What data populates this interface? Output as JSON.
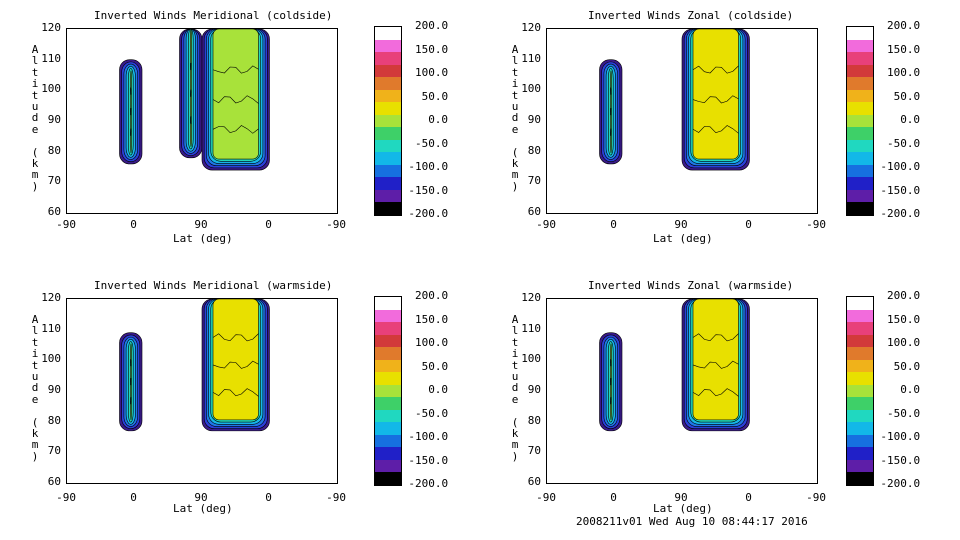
{
  "colorscale": {
    "stops": [
      "#ffffff",
      "#f26bdc",
      "#e8407a",
      "#d23a3a",
      "#e07a2c",
      "#f0b21a",
      "#e8e000",
      "#a8e23a",
      "#3ed068",
      "#20d8c0",
      "#12b8e8",
      "#1670e0",
      "#2020c8",
      "#5e1ea8",
      "#000000"
    ],
    "tick_labels": [
      "200.0",
      "150.0",
      "100.0",
      "50.0",
      "0.0",
      "-50.0",
      "-100.0",
      "-150.0",
      "-200.0"
    ]
  },
  "panels": [
    {
      "title": "Inverted Winds Meridional (coldside)",
      "xlabel": "Lat (deg)",
      "ylabel": "Altitude (km)",
      "xticks": [
        "-90",
        "0",
        "90",
        "0",
        "-90"
      ],
      "yticks": [
        "120",
        "110",
        "100",
        "90",
        "80",
        "70",
        "60"
      ]
    },
    {
      "title": "Inverted Winds Zonal (coldside)",
      "xlabel": "Lat (deg)",
      "ylabel": "Altitude (km)",
      "xticks": [
        "-90",
        "0",
        "90",
        "0",
        "-90"
      ],
      "yticks": [
        "120",
        "110",
        "100",
        "90",
        "80",
        "70",
        "60"
      ]
    },
    {
      "title": "Inverted Winds Meridional (warmside)",
      "xlabel": "Lat (deg)",
      "ylabel": "Altitude (km)",
      "xticks": [
        "-90",
        "0",
        "90",
        "0",
        "-90"
      ],
      "yticks": [
        "120",
        "110",
        "100",
        "90",
        "80",
        "70",
        "60"
      ]
    },
    {
      "title": "Inverted Winds Zonal (warmside)",
      "xlabel": "Lat (deg)",
      "ylabel": "Altitude (km)",
      "xticks": [
        "-90",
        "0",
        "90",
        "0",
        "-90"
      ],
      "yticks": [
        "120",
        "110",
        "100",
        "90",
        "80",
        "70",
        "60"
      ]
    }
  ],
  "footer": "2008211v01 Wed Aug 10 08:44:17 2016",
  "chart_data": [
    {
      "type": "heatmap",
      "title": "Inverted Winds Meridional (coldside)",
      "xlabel": "Lat (deg)",
      "ylabel": "Altitude (km)",
      "xlim": [
        "-90",
        "-90"
      ],
      "ylim": [
        60,
        120
      ],
      "colorbar_range": [
        -200,
        200
      ],
      "regions": [
        {
          "x": [
            -20,
            10
          ],
          "alt": [
            76,
            110
          ],
          "value": 0
        },
        {
          "x": [
            60,
            90
          ],
          "alt": [
            78,
            122
          ],
          "value": 20
        },
        {
          "x": [
            90,
            180
          ],
          "alt": [
            74,
            122
          ],
          "value": 10
        }
      ]
    },
    {
      "type": "heatmap",
      "title": "Inverted Winds Zonal (coldside)",
      "xlabel": "Lat (deg)",
      "ylabel": "Altitude (km)",
      "xlim": [
        "-90",
        "-90"
      ],
      "ylim": [
        60,
        120
      ],
      "colorbar_range": [
        -200,
        200
      ],
      "regions": [
        {
          "x": [
            -20,
            10
          ],
          "alt": [
            76,
            110
          ],
          "value": 0
        },
        {
          "x": [
            90,
            180
          ],
          "alt": [
            74,
            122
          ],
          "value": 15
        }
      ]
    },
    {
      "type": "heatmap",
      "title": "Inverted Winds Meridional (warmside)",
      "xlabel": "Lat (deg)",
      "ylabel": "Altitude (km)",
      "xlim": [
        "-90",
        "-90"
      ],
      "ylim": [
        60,
        120
      ],
      "colorbar_range": [
        -200,
        200
      ],
      "regions": [
        {
          "x": [
            -20,
            10
          ],
          "alt": [
            77,
            109
          ],
          "value": -10
        },
        {
          "x": [
            90,
            180
          ],
          "alt": [
            77,
            122
          ],
          "value": 20
        }
      ]
    },
    {
      "type": "heatmap",
      "title": "Inverted Winds Zonal (warmside)",
      "xlabel": "Lat (deg)",
      "ylabel": "Altitude (km)",
      "xlim": [
        "-90",
        "-90"
      ],
      "ylim": [
        60,
        120
      ],
      "colorbar_range": [
        -200,
        200
      ],
      "regions": [
        {
          "x": [
            -20,
            10
          ],
          "alt": [
            77,
            109
          ],
          "value": 20
        },
        {
          "x": [
            90,
            180
          ],
          "alt": [
            77,
            122
          ],
          "value": 40
        }
      ]
    }
  ]
}
